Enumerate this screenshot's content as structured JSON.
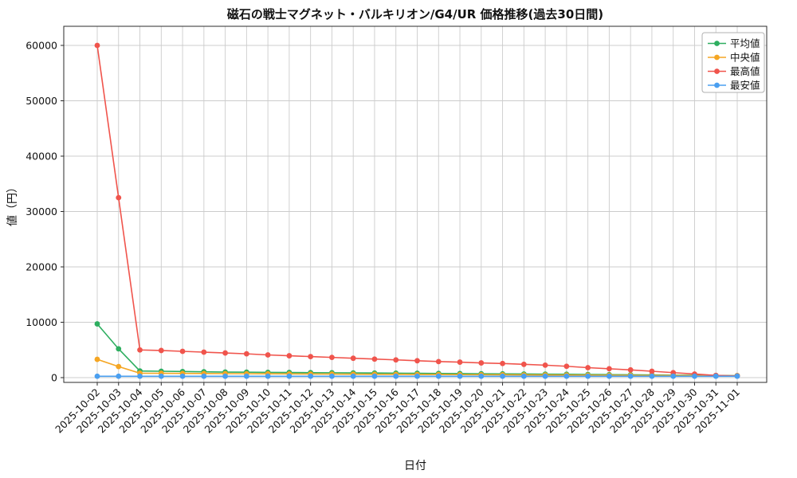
{
  "chart_data": {
    "type": "line",
    "title": "磁石の戦士マグネット・バルキリオン/G4/UR 価格推移(過去30日間)",
    "xlabel": "日付",
    "ylabel": "値（円）",
    "ylim": [
      0,
      60000
    ],
    "yticks": [
      0,
      10000,
      20000,
      30000,
      40000,
      50000,
      60000
    ],
    "grid": true,
    "legend_position": "top-right",
    "x": [
      "2025-10-02",
      "2025-10-03",
      "2025-10-04",
      "2025-10-05",
      "2025-10-06",
      "2025-10-07",
      "2025-10-08",
      "2025-10-09",
      "2025-10-10",
      "2025-10-11",
      "2025-10-12",
      "2025-10-13",
      "2025-10-14",
      "2025-10-15",
      "2025-10-16",
      "2025-10-17",
      "2025-10-18",
      "2025-10-19",
      "2025-10-20",
      "2025-10-21",
      "2025-10-22",
      "2025-10-23",
      "2025-10-24",
      "2025-10-25",
      "2025-10-26",
      "2025-10-27",
      "2025-10-28",
      "2025-10-29",
      "2025-10-30",
      "2025-10-31",
      "2025-11-01"
    ],
    "series": [
      {
        "name": "平均値",
        "color": "#2eae60",
        "values": [
          9700,
          5200,
          1200,
          1150,
          1100,
          1050,
          1000,
          980,
          950,
          930,
          900,
          880,
          850,
          830,
          800,
          780,
          750,
          730,
          700,
          680,
          650,
          630,
          600,
          570,
          540,
          510,
          480,
          450,
          420,
          390,
          360
        ]
      },
      {
        "name": "中央値",
        "color": "#f5a623",
        "values": [
          3300,
          2000,
          800,
          780,
          760,
          740,
          720,
          700,
          690,
          670,
          650,
          640,
          620,
          600,
          590,
          570,
          560,
          540,
          520,
          510,
          490,
          480,
          460,
          440,
          430,
          410,
          390,
          380,
          360,
          340,
          330
        ]
      },
      {
        "name": "最高値",
        "color": "#f0544c",
        "values": [
          60000,
          32500,
          5000,
          4900,
          4750,
          4600,
          4450,
          4300,
          4100,
          3950,
          3800,
          3650,
          3500,
          3350,
          3200,
          3050,
          2900,
          2800,
          2650,
          2550,
          2400,
          2250,
          2050,
          1800,
          1600,
          1400,
          1150,
          900,
          650,
          400,
          300
        ]
      },
      {
        "name": "最安値",
        "color": "#4a9ff0",
        "values": [
          250,
          250,
          250,
          250,
          250,
          250,
          250,
          250,
          250,
          250,
          250,
          250,
          250,
          250,
          250,
          250,
          250,
          250,
          250,
          250,
          250,
          250,
          250,
          250,
          250,
          250,
          250,
          250,
          250,
          250,
          250
        ]
      }
    ]
  }
}
